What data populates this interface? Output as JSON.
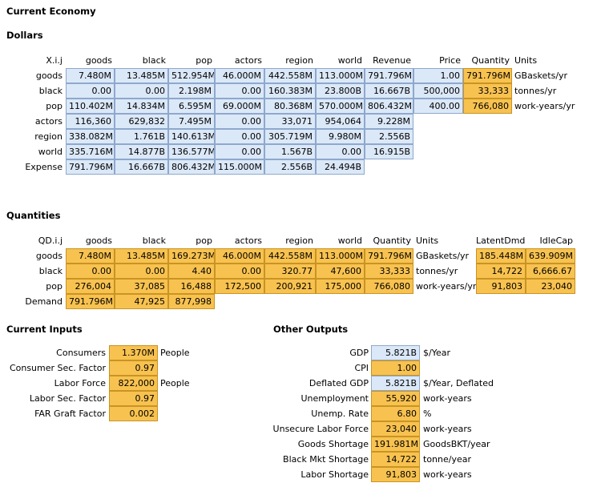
{
  "titles": {
    "main": "Current Economy",
    "dollars": "Dollars",
    "quantities": "Quantities",
    "inputs": "Current Inputs",
    "outputs": "Other Outputs"
  },
  "dollars": {
    "corner": "X.i.j",
    "columns": [
      "goods",
      "black",
      "pop",
      "actors",
      "region",
      "world",
      "Revenue",
      "Price",
      "Quantity",
      "Units"
    ],
    "rows": [
      {
        "label": "goods",
        "cells": [
          "7.480M",
          "13.485M",
          "512.954M",
          "46.000M",
          "442.558M",
          "113.000M",
          "791.796M"
        ],
        "price": "1.00",
        "quantity": "791.796M",
        "units": "GBaskets/yr"
      },
      {
        "label": "black",
        "cells": [
          "0.00",
          "0.00",
          "2.198M",
          "0.00",
          "160.383M",
          "23.800B",
          "16.667B"
        ],
        "price": "500,000",
        "quantity": "33,333",
        "units": "tonnes/yr"
      },
      {
        "label": "pop",
        "cells": [
          "110.402M",
          "14.834M",
          "6.595M",
          "69.000M",
          "80.368M",
          "570.000M",
          "806.432M"
        ],
        "price": "400.00",
        "quantity": "766,080",
        "units": "work-years/yr"
      },
      {
        "label": "actors",
        "cells": [
          "116,360",
          "629,832",
          "7.495M",
          "0.00",
          "33,071",
          "954,064",
          "9.228M"
        ]
      },
      {
        "label": "region",
        "cells": [
          "338.082M",
          "1.761B",
          "140.613M",
          "0.00",
          "305.719M",
          "9.980M",
          "2.556B"
        ]
      },
      {
        "label": "world",
        "cells": [
          "335.716M",
          "14.877B",
          "136.577M",
          "0.00",
          "1.567B",
          "0.00",
          "16.915B"
        ]
      },
      {
        "label": "Expense",
        "cells": [
          "791.796M",
          "16.667B",
          "806.432M",
          "115.000M",
          "2.556B",
          "24.494B"
        ]
      }
    ]
  },
  "quantities": {
    "corner": "QD.i.j",
    "columns": [
      "goods",
      "black",
      "pop",
      "actors",
      "region",
      "world",
      "Quantity",
      "Units",
      "LatentDmd",
      "IdleCap"
    ],
    "rows": [
      {
        "label": "goods",
        "cells": [
          "7.480M",
          "13.485M",
          "169.273M",
          "46.000M",
          "442.558M",
          "113.000M",
          "791.796M"
        ],
        "units": "GBaskets/yr",
        "latent": "185.448M",
        "idle": "639.909M"
      },
      {
        "label": "black",
        "cells": [
          "0.00",
          "0.00",
          "4.40",
          "0.00",
          "320.77",
          "47,600",
          "33,333"
        ],
        "units": "tonnes/yr",
        "latent": "14,722",
        "idle": "6,666.67"
      },
      {
        "label": "pop",
        "cells": [
          "276,004",
          "37,085",
          "16,488",
          "172,500",
          "200,921",
          "175,000",
          "766,080"
        ],
        "units": "work-years/yr",
        "latent": "91,803",
        "idle": "23,040"
      },
      {
        "label": "Demand",
        "cells": [
          "791.796M",
          "47,925",
          "877,998"
        ]
      }
    ]
  },
  "inputs": [
    {
      "label": "Consumers",
      "value": "1.370M",
      "unit": "People"
    },
    {
      "label": "Consumer Sec. Factor",
      "value": "0.97",
      "unit": ""
    },
    {
      "label": "Labor Force",
      "value": "822,000",
      "unit": "People"
    },
    {
      "label": "Labor Sec. Factor",
      "value": "0.97",
      "unit": ""
    },
    {
      "label": "FAR Graft Factor",
      "value": "0.002",
      "unit": ""
    }
  ],
  "outputs": [
    {
      "label": "GDP",
      "value": "5.821B",
      "unit": "$/Year",
      "color": "blue"
    },
    {
      "label": "CPI",
      "value": "1.00",
      "unit": "",
      "color": "orange"
    },
    {
      "label": "Deflated GDP",
      "value": "5.821B",
      "unit": "$/Year, Deflated",
      "color": "blue"
    },
    {
      "label": "Unemployment",
      "value": "55,920",
      "unit": "work-years",
      "color": "orange"
    },
    {
      "label": "Unemp. Rate",
      "value": "6.80",
      "unit": "%",
      "color": "orange"
    },
    {
      "label": "Unsecure Labor Force",
      "value": "23,040",
      "unit": "work-years",
      "color": "orange"
    },
    {
      "label": "Goods Shortage",
      "value": "191.981M",
      "unit": "GoodsBKT/year",
      "color": "orange"
    },
    {
      "label": "Black Mkt Shortage",
      "value": "14,722",
      "unit": "tonne/year",
      "color": "orange"
    },
    {
      "label": "Labor Shortage",
      "value": "91,803",
      "unit": "work-years",
      "color": "orange"
    }
  ],
  "colors": {
    "blue_cell": "#dbe8f8",
    "orange_cell": "#f8c250"
  }
}
